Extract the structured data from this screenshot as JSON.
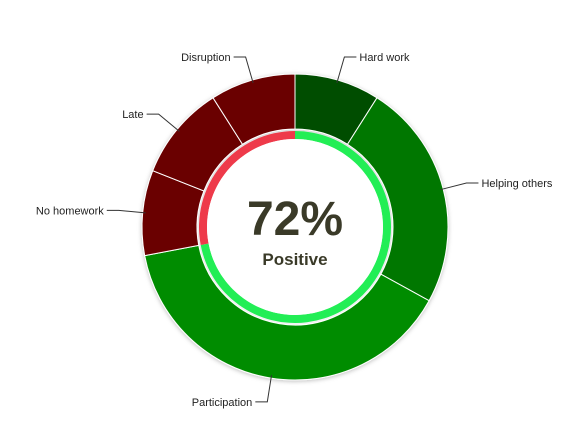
{
  "chart_data": {
    "type": "pie",
    "variant": "donut",
    "categories": [
      "Hard work",
      "Helping others",
      "Participation",
      "No homework",
      "Late",
      "Disruption"
    ],
    "values": [
      9,
      24,
      39,
      9,
      10,
      9
    ],
    "colors": [
      "#004d00",
      "#007700",
      "#008c00",
      "#6b0000",
      "#6b0000",
      "#6b0000"
    ],
    "center_value": "72%",
    "center_label": "Positive",
    "inner_ring": {
      "positive_fraction": 0.72,
      "positive_color": "#22ee55",
      "negative_color": "#ee3a4a"
    },
    "title": "",
    "legend": "none"
  }
}
